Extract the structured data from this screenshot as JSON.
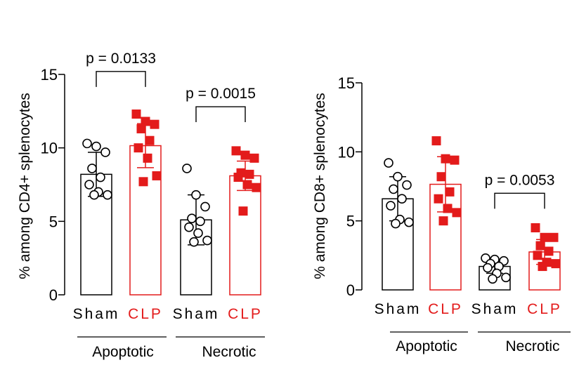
{
  "colors": {
    "sham": "#000000",
    "clp": "#e31b1b"
  },
  "chart_data": [
    {
      "type": "bar",
      "ylabel": "% among CD4+ splenocytes",
      "ylim": [
        0,
        15
      ],
      "yticks": [
        0,
        5,
        10,
        15
      ],
      "categories": [
        "Sham",
        "CLP",
        "Sham",
        "CLP"
      ],
      "groups": [
        "Apoptotic",
        "Necrotic"
      ],
      "means": [
        8.2,
        10.15,
        5.1,
        8.1
      ],
      "sd": [
        1.5,
        1.5,
        1.7,
        1.0
      ],
      "points": [
        [
          10.3,
          10.1,
          9.7,
          8.6,
          8.0,
          7.5,
          7.0,
          6.8,
          6.8
        ],
        [
          12.3,
          11.8,
          11.6,
          11.3,
          10.5,
          10.0,
          9.3,
          8.1,
          7.7
        ],
        [
          8.6,
          6.8,
          6.0,
          5.2,
          5.0,
          4.6,
          4.2,
          3.7,
          3.6
        ],
        [
          9.8,
          9.5,
          9.3,
          8.3,
          8.2,
          8.0,
          7.5,
          7.3,
          5.7
        ]
      ],
      "comparisons": [
        {
          "label": "p = 0.0133",
          "from": 0,
          "to": 1,
          "y": 15.2
        },
        {
          "label": "p = 0.0015",
          "from": 2,
          "to": 3,
          "y": 12.8
        }
      ]
    },
    {
      "type": "bar",
      "ylabel": "% among CD8+ splenocytes",
      "ylim": [
        0,
        15
      ],
      "yticks": [
        0,
        5,
        10,
        15
      ],
      "categories": [
        "Sham",
        "CLP",
        "Sham",
        "CLP"
      ],
      "groups": [
        "Apoptotic",
        "Necrotic"
      ],
      "means": [
        6.6,
        7.65,
        1.7,
        2.75
      ],
      "sd": [
        1.6,
        2.0,
        0.5,
        0.9
      ],
      "points": [
        [
          9.2,
          8.2,
          7.6,
          7.3,
          6.6,
          6.1,
          5.1,
          4.9,
          4.8
        ],
        [
          10.8,
          9.5,
          9.4,
          8.2,
          7.1,
          6.6,
          5.9,
          5.6,
          5.0
        ],
        [
          2.3,
          2.2,
          2.1,
          1.9,
          1.7,
          1.6,
          1.2,
          0.9,
          0.8
        ],
        [
          4.5,
          3.8,
          3.8,
          3.2,
          2.8,
          2.5,
          2.0,
          1.9,
          1.7
        ]
      ],
      "comparisons": [
        {
          "label": "p = 0.0053",
          "from": 2,
          "to": 3,
          "y": 7.0
        }
      ]
    }
  ]
}
